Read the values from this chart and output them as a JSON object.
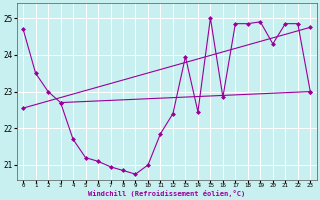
{
  "xlabel": "Windchill (Refroidissement éolien,°C)",
  "background_color": "#c8f0f0",
  "grid_color": "#ffffff",
  "line_color": "#990099",
  "xlim": [
    -0.5,
    23.5
  ],
  "ylim": [
    20.6,
    25.4
  ],
  "xticks": [
    0,
    1,
    2,
    3,
    4,
    5,
    6,
    7,
    8,
    9,
    10,
    11,
    12,
    13,
    14,
    15,
    16,
    17,
    18,
    19,
    20,
    21,
    22,
    23
  ],
  "yticks": [
    21,
    22,
    23,
    24,
    25
  ],
  "line1_x": [
    0,
    1,
    2,
    3,
    4,
    5,
    6,
    7,
    8,
    9,
    10,
    11,
    12,
    13,
    14,
    15,
    16,
    17,
    18,
    19,
    20,
    21,
    22,
    23
  ],
  "line1_y": [
    24.7,
    23.5,
    23.0,
    22.7,
    21.7,
    21.2,
    21.1,
    20.95,
    20.85,
    20.75,
    21.0,
    21.85,
    22.4,
    23.95,
    22.45,
    25.0,
    22.85,
    24.85,
    24.85,
    24.9,
    24.3,
    24.85,
    24.85,
    23.0
  ],
  "line2_x": [
    0,
    23
  ],
  "line2_y": [
    22.55,
    24.75
  ],
  "line3_x": [
    3,
    23
  ],
  "line3_y": [
    22.7,
    23.0
  ]
}
